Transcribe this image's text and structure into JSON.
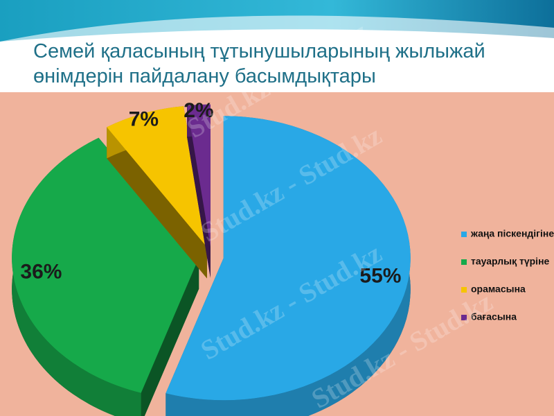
{
  "chart_data": {
    "type": "pie",
    "title": "Семей қаласының тұтынушыларының жылыжай өнімдерін пайдалану басымдықтары",
    "categories": [
      "жаңа піскендігіне",
      "тауарлық түріне",
      "орамасына",
      "бағасына"
    ],
    "values": [
      55,
      36,
      7,
      2
    ],
    "value_labels": [
      "55%",
      "36%",
      "7%",
      "2%"
    ],
    "colors": [
      "#29a8e6",
      "#16a94a",
      "#f6c400",
      "#6b2b8f"
    ],
    "legend": "right",
    "watermark": "Stud.kz - Stud.kz"
  }
}
